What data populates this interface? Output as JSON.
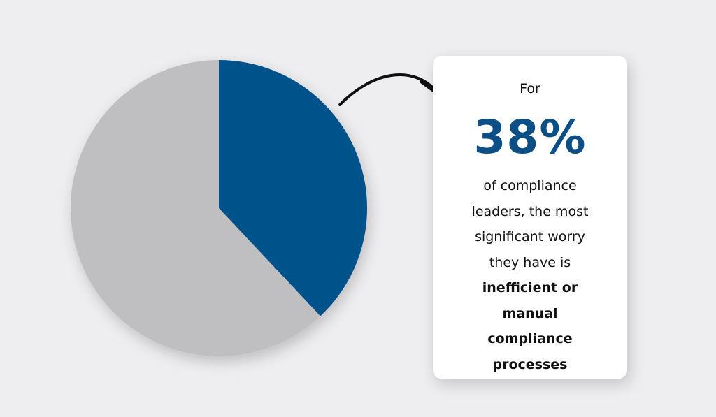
{
  "chart_data": {
    "type": "pie",
    "values": [
      38,
      62
    ],
    "colors": [
      "#03528a",
      "#bfbfc1"
    ],
    "value_labels": [
      "38%",
      null
    ],
    "annotation": {
      "lead": "For",
      "text": "of compliance leaders, the most significant worry they have is",
      "emphasis": "inefficient or manual compliance processes"
    }
  }
}
